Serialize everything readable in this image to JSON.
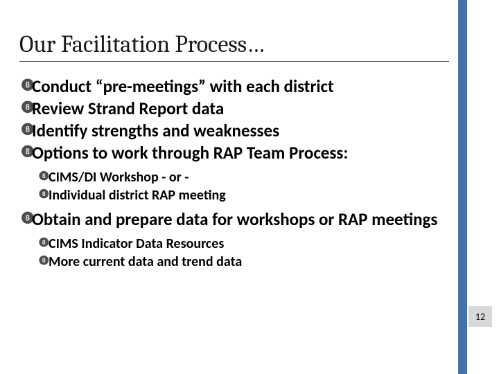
{
  "accent_color": "#4472a8",
  "pagenum_bg": "#d9d9d9",
  "title": {
    "text": "Our Facilitation Process…",
    "fontsize": 34
  },
  "bullets": {
    "fontsize_l1": 25,
    "fontsize_l2": 20,
    "items": [
      {
        "level": 1,
        "text": "Conduct “pre-meetings” with each district"
      },
      {
        "level": 1,
        "text": "Review Strand Report data"
      },
      {
        "level": 1,
        "text": "Identify strengths and weaknesses"
      },
      {
        "level": 1,
        "text": "Options to work through RAP Team Process:"
      },
      {
        "level": 2,
        "text": "CIMS/DI Workshop - or -"
      },
      {
        "level": 2,
        "text": "Individual district RAP meeting"
      },
      {
        "level": 1,
        "text": "Obtain and prepare data for workshops or RAP meetings"
      },
      {
        "level": 2,
        "text": "CIMS Indicator Data Resources"
      },
      {
        "level": 2,
        "text": "More current data and trend data"
      }
    ]
  },
  "page_number": {
    "value": "12",
    "fontsize": 14
  }
}
